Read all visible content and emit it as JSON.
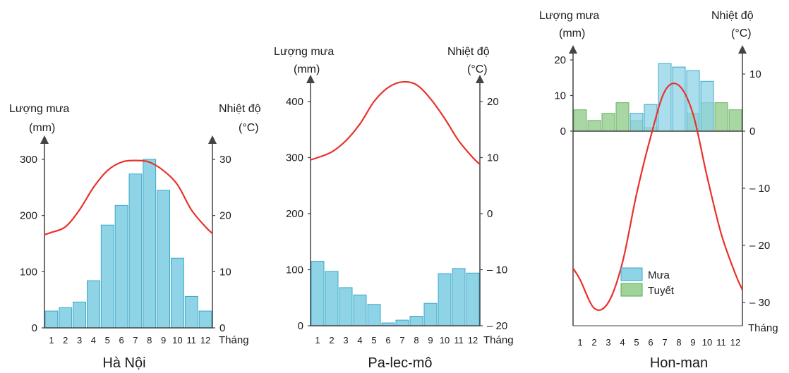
{
  "colors": {
    "rain": "#8fd3e6",
    "rain_stroke": "#3aa9c9",
    "snow": "#9fd39a",
    "snow_stroke": "#5aaa55",
    "temp": "#e8322b",
    "axis": "#444444"
  },
  "chart_data": [
    {
      "type": "bar",
      "title": "Hà Nội",
      "left_axis_label": [
        "Lượng mưa",
        "(mm)"
      ],
      "right_axis_label": [
        "Nhiệt độ",
        "(°C)"
      ],
      "xlabel": "Tháng",
      "months": [
        "1",
        "2",
        "3",
        "4",
        "5",
        "6",
        "7",
        "8",
        "9",
        "10",
        "11",
        "12"
      ],
      "rain_ticks": [
        "0",
        "100",
        "200",
        "300"
      ],
      "temp_ticks": [
        "0",
        "10",
        "20",
        "30"
      ],
      "rain_ylim": [
        0,
        300
      ],
      "temp_ylim": [
        0,
        30
      ],
      "rain_mm": [
        30,
        36,
        46,
        84,
        183,
        218,
        274,
        300,
        245,
        124,
        56,
        30
      ],
      "temp_c": [
        17,
        18,
        21,
        25,
        28,
        29.5,
        29.8,
        29.5,
        28,
        25.5,
        21,
        18
      ]
    },
    {
      "type": "bar",
      "title": "Pa-lec-mô",
      "left_axis_label": [
        "Lượng mưa",
        "(mm)"
      ],
      "right_axis_label": [
        "Nhiệt độ",
        "(°C)"
      ],
      "xlabel": "Tháng",
      "months": [
        "1",
        "2",
        "3",
        "4",
        "5",
        "6",
        "7",
        "8",
        "9",
        "10",
        "11",
        "12"
      ],
      "rain_ticks": [
        "0",
        "100",
        "200",
        "300",
        "400"
      ],
      "temp_ticks": [
        "– 20",
        "– 10",
        "0",
        "10",
        "20"
      ],
      "rain_ylim": [
        0,
        400
      ],
      "temp_ylim": [
        -20,
        20
      ],
      "rain_mm": [
        115,
        97,
        68,
        55,
        38,
        5,
        10,
        17,
        40,
        93,
        102,
        94
      ],
      "temp_c": [
        10,
        11,
        13,
        16,
        20,
        22.5,
        23.5,
        23,
        20.5,
        17,
        13,
        10
      ]
    },
    {
      "type": "bar",
      "title": "Hon-man",
      "left_axis_label": [
        "Lượng mưa",
        "(mm)"
      ],
      "right_axis_label": [
        "Nhiệt độ",
        "(°C)"
      ],
      "xlabel": "Tháng",
      "months": [
        "1",
        "2",
        "3",
        "4",
        "5",
        "6",
        "7",
        "8",
        "9",
        "10",
        "11",
        "12"
      ],
      "rain_ticks": [
        "0",
        "10",
        "20"
      ],
      "temp_ticks": [
        "– 30",
        "– 20",
        "– 10",
        "0",
        "10"
      ],
      "rain_ylim": [
        0,
        20
      ],
      "temp_ylim": [
        -30,
        10
      ],
      "rain_mm": [
        0,
        0,
        0,
        0,
        5,
        7.5,
        19,
        18,
        17,
        14,
        0,
        0
      ],
      "snow_mm": [
        6,
        3,
        5,
        8,
        3,
        1,
        0,
        0,
        5,
        8,
        8,
        6
      ],
      "temp_c": [
        -26,
        -31,
        -30,
        -23,
        -11,
        -1,
        7,
        8,
        3,
        -8,
        -18,
        -25
      ],
      "legend": [
        {
          "label": "Mưa",
          "kind": "rain"
        },
        {
          "label": "Tuyết",
          "kind": "snow"
        }
      ],
      "legend_position": "bottom-center"
    }
  ]
}
